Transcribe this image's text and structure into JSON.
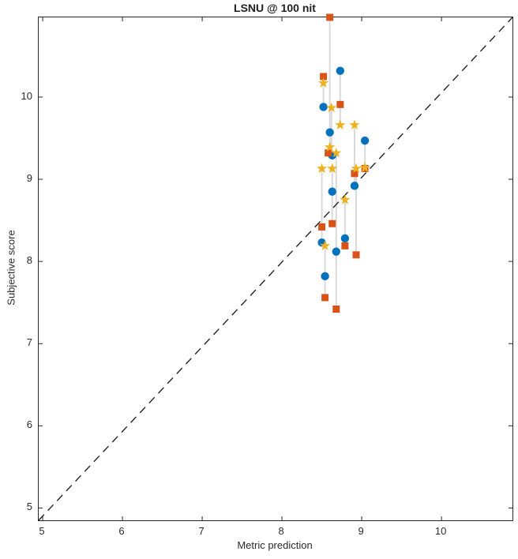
{
  "chart_data": {
    "type": "scatter",
    "title": "LSNU @ 100 nit",
    "xlabel": "Metric prediction",
    "ylabel": "Subjective score",
    "xlim": [
      4.95,
      10.89
    ],
    "ylim": [
      4.85,
      10.97
    ],
    "xticks": [
      5,
      6,
      7,
      8,
      9,
      10
    ],
    "yticks": [
      5,
      6,
      7,
      8,
      9,
      10
    ],
    "grid": false,
    "legend": "none",
    "axis_color": "#262626",
    "identity_line": {
      "style": "dashed",
      "color": "#1a1a1a",
      "from": [
        4.95,
        4.85
      ],
      "to": [
        10.89,
        10.97
      ]
    },
    "connector_color": "#d9d9d9",
    "connectors": [
      {
        "x": 8.52,
        "y1": 9.88,
        "y2": 10.25
      },
      {
        "x": 8.6,
        "y1": 9.39,
        "y2": 10.97
      },
      {
        "x": 8.62,
        "y1": 9.29,
        "y2": 9.87
      },
      {
        "x": 8.5,
        "y1": 8.23,
        "y2": 9.13
      },
      {
        "x": 8.63,
        "y1": 8.46,
        "y2": 9.13
      },
      {
        "x": 8.54,
        "y1": 7.56,
        "y2": 8.19
      },
      {
        "x": 8.68,
        "y1": 7.42,
        "y2": 9.32
      },
      {
        "x": 8.73,
        "y1": 9.66,
        "y2": 10.32
      },
      {
        "x": 8.79,
        "y1": 8.19,
        "y2": 8.75
      },
      {
        "x": 8.91,
        "y1": 8.92,
        "y2": 9.66
      },
      {
        "x": 8.93,
        "y1": 8.08,
        "y2": 9.13
      },
      {
        "x": 9.04,
        "y1": 9.13,
        "y2": 9.47
      }
    ],
    "series": [
      {
        "name": "circle-series",
        "marker": "circle",
        "color": "#0072BD",
        "points": [
          [
            8.52,
            9.88
          ],
          [
            8.6,
            9.57
          ],
          [
            8.63,
            9.29
          ],
          [
            8.5,
            8.23
          ],
          [
            8.63,
            8.85
          ],
          [
            8.54,
            7.82
          ],
          [
            8.68,
            8.12
          ],
          [
            8.73,
            10.32
          ],
          [
            8.79,
            8.28
          ],
          [
            8.91,
            8.92
          ],
          [
            9.04,
            9.47
          ]
        ]
      },
      {
        "name": "square-series",
        "marker": "square",
        "color": "#D95319",
        "points": [
          [
            8.52,
            10.25
          ],
          [
            8.6,
            10.97
          ],
          [
            8.58,
            9.32
          ],
          [
            8.5,
            8.42
          ],
          [
            8.63,
            8.46
          ],
          [
            8.54,
            7.56
          ],
          [
            8.68,
            7.42
          ],
          [
            8.73,
            9.91
          ],
          [
            8.79,
            8.19
          ],
          [
            8.91,
            9.07
          ],
          [
            8.93,
            8.08
          ],
          [
            9.04,
            9.13
          ]
        ]
      },
      {
        "name": "star-series",
        "marker": "pentagram",
        "color": "#EDB120",
        "points": [
          [
            8.52,
            10.17
          ],
          [
            8.6,
            9.39
          ],
          [
            8.62,
            9.87
          ],
          [
            8.68,
            9.32
          ],
          [
            8.5,
            9.13
          ],
          [
            8.63,
            9.13
          ],
          [
            8.54,
            8.19
          ],
          [
            8.73,
            9.66
          ],
          [
            8.79,
            8.75
          ],
          [
            8.91,
            9.66
          ],
          [
            8.93,
            9.13
          ],
          [
            9.04,
            9.14
          ]
        ]
      }
    ]
  }
}
